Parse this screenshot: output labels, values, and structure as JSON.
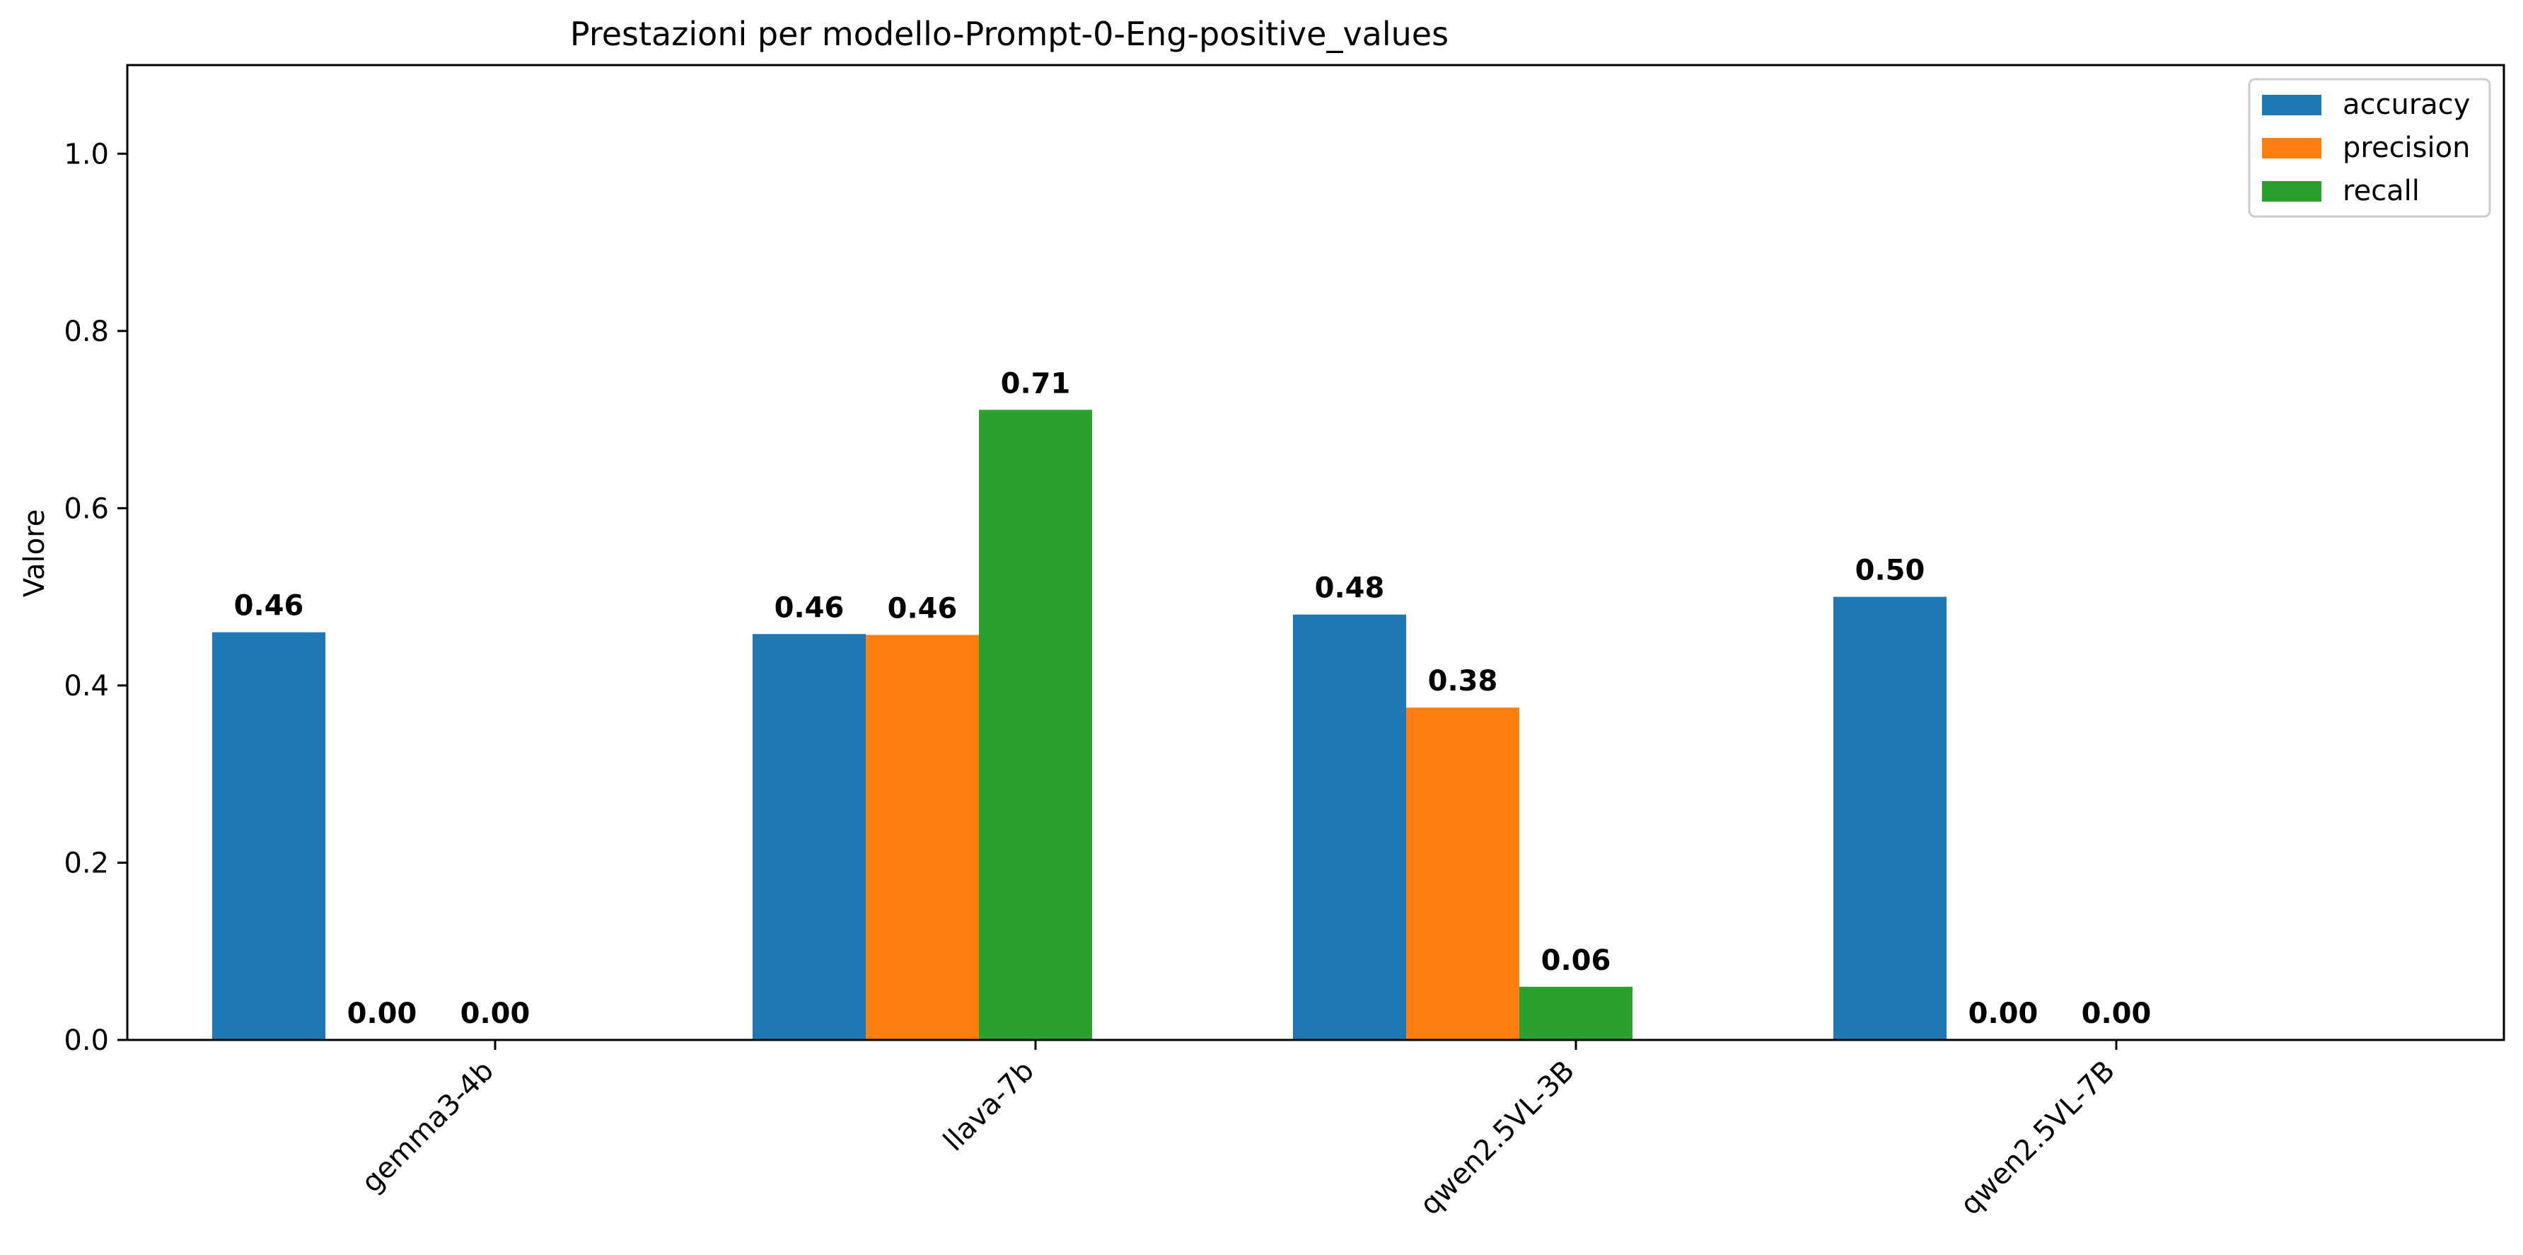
{
  "chart_data": {
    "type": "bar",
    "title": "Prestazioni per modello-Prompt-0-Eng-positive_values",
    "xlabel": "",
    "ylabel": "Valore",
    "ylim": [
      0,
      1.1
    ],
    "yticks": [
      0.0,
      0.2,
      0.4,
      0.6,
      0.8,
      1.0
    ],
    "ytick_labels": [
      "0.0",
      "0.2",
      "0.4",
      "0.6",
      "0.8",
      "1.0"
    ],
    "categories": [
      "gemma3-4b",
      "llava-7b",
      "qwen2.5VL-3B",
      "qwen2.5VL-7B"
    ],
    "series": [
      {
        "name": "accuracy",
        "color": "#1f77b4",
        "values": [
          0.46,
          0.458,
          0.48,
          0.5
        ],
        "labels": [
          "0.46",
          "0.46",
          "0.48",
          "0.50"
        ]
      },
      {
        "name": "precision",
        "color": "#ff7f0e",
        "values": [
          0.0,
          0.457,
          0.375,
          0.0
        ],
        "labels": [
          "0.00",
          "0.46",
          "0.38",
          "0.00"
        ]
      },
      {
        "name": "recall",
        "color": "#2ca02c",
        "values": [
          0.0,
          0.711,
          0.06,
          0.0
        ],
        "labels": [
          "0.00",
          "0.71",
          "0.06",
          "0.00"
        ]
      }
    ],
    "grid": false,
    "legend_position": "top-right"
  }
}
